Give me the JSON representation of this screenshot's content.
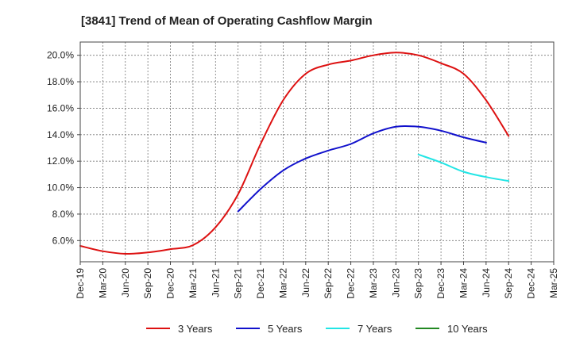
{
  "chart_data": {
    "type": "line",
    "title": "[3841]  Trend of Mean of Operating Cashflow Margin",
    "xlabel": "",
    "ylabel": "",
    "x_categories": [
      "Dec-19",
      "Mar-20",
      "Jun-20",
      "Sep-20",
      "Dec-20",
      "Mar-21",
      "Jun-21",
      "Sep-21",
      "Dec-21",
      "Mar-22",
      "Jun-22",
      "Sep-22",
      "Dec-22",
      "Mar-23",
      "Jun-23",
      "Sep-23",
      "Dec-23",
      "Mar-24",
      "Jun-24",
      "Sep-24",
      "Dec-24",
      "Mar-25"
    ],
    "y_ticks": [
      "6.0%",
      "8.0%",
      "10.0%",
      "12.0%",
      "14.0%",
      "16.0%",
      "18.0%",
      "20.0%"
    ],
    "ylim": [
      4.4,
      21.0
    ],
    "grid": true,
    "legend_position": "bottom",
    "series": [
      {
        "name": "3 Years",
        "color": "#dd1111",
        "start_index": 0,
        "values": [
          5.6,
          5.2,
          5.0,
          5.1,
          5.35,
          5.65,
          7.0,
          9.5,
          13.3,
          16.6,
          18.6,
          19.3,
          19.6,
          20.0,
          20.2,
          20.0,
          19.4,
          18.6,
          16.6,
          13.9
        ]
      },
      {
        "name": "5 Years",
        "color": "#1111cc",
        "start_index": 7,
        "values": [
          8.2,
          9.9,
          11.3,
          12.2,
          12.8,
          13.3,
          14.1,
          14.6,
          14.6,
          14.3,
          13.8,
          13.4
        ]
      },
      {
        "name": "7 Years",
        "color": "#22e5e5",
        "start_index": 15,
        "values": [
          12.5,
          11.9,
          11.2,
          10.8,
          10.5
        ]
      },
      {
        "name": "10 Years",
        "color": "#228822",
        "start_index": 0,
        "values": []
      }
    ]
  }
}
